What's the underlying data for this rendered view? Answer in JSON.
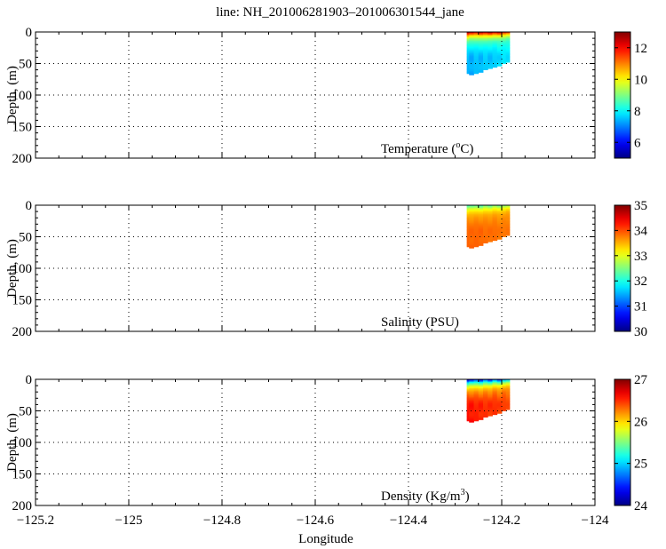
{
  "figure": {
    "title": "line: NH_201006281903–201006301544_jane",
    "xlabel": "Longitude"
  },
  "chart_data": [
    {
      "type": "heatmap",
      "title": "line: NH_201006281903–201006301544_jane",
      "panel_label": "Temperature (°C)",
      "label_main": "Temperature (",
      "label_sup": "o",
      "label_tail": "C)",
      "xlabel": "",
      "ylabel": "Depth, (m)",
      "xlim": [
        -125.2,
        -124.0
      ],
      "ylim": [
        200,
        0
      ],
      "y_inverted": true,
      "xticks": [
        -125.2,
        -125,
        -124.8,
        -124.6,
        -124.4,
        -124.2,
        -124
      ],
      "xtick_labels": [
        "−125.2",
        "−125",
        "−124.8",
        "−124.6",
        "−124.4",
        "−124.2",
        "−124"
      ],
      "yticks": [
        0,
        50,
        100,
        150,
        200
      ],
      "ytick_labels": [
        "0",
        "50",
        "100",
        "150",
        "200"
      ],
      "grid": true,
      "colorbar": {
        "min": 5,
        "max": 13,
        "ticks": [
          6,
          8,
          10,
          12
        ],
        "tick_labels": [
          "6",
          "8",
          "10",
          "12"
        ],
        "colormap": "jet"
      },
      "data_extent": {
        "lon_min": -124.275,
        "lon_max": -124.185
      },
      "profiles": [
        {
          "lon": -124.275,
          "max_depth": 66,
          "surface": 12.6,
          "bottom": 7.4
        },
        {
          "lon": -124.265,
          "max_depth": 67,
          "surface": 12.2,
          "bottom": 7.3
        },
        {
          "lon": -124.255,
          "max_depth": 65,
          "surface": 11.8,
          "bottom": 7.5
        },
        {
          "lon": -124.245,
          "max_depth": 63,
          "surface": 12.4,
          "bottom": 7.4
        },
        {
          "lon": -124.235,
          "max_depth": 60,
          "surface": 12.0,
          "bottom": 7.6
        },
        {
          "lon": -124.225,
          "max_depth": 58,
          "surface": 12.5,
          "bottom": 7.5
        },
        {
          "lon": -124.215,
          "max_depth": 56,
          "surface": 11.9,
          "bottom": 7.6
        },
        {
          "lon": -124.205,
          "max_depth": 53,
          "surface": 12.3,
          "bottom": 7.7
        },
        {
          "lon": -124.195,
          "max_depth": 50,
          "surface": 11.7,
          "bottom": 7.8
        },
        {
          "lon": -124.187,
          "max_depth": 48,
          "surface": 11.5,
          "bottom": 7.8
        }
      ]
    },
    {
      "type": "heatmap",
      "panel_label": "Salinity (PSU)",
      "label_main": "Salinity (PSU)",
      "label_sup": "",
      "label_tail": "",
      "xlabel": "",
      "ylabel": "Depth, (m)",
      "xlim": [
        -125.2,
        -124.0
      ],
      "ylim": [
        200,
        0
      ],
      "y_inverted": true,
      "xticks": [
        -125.2,
        -125,
        -124.8,
        -124.6,
        -124.4,
        -124.2,
        -124
      ],
      "yticks": [
        0,
        50,
        100,
        150,
        200
      ],
      "ytick_labels": [
        "0",
        "50",
        "100",
        "150",
        "200"
      ],
      "grid": true,
      "colorbar": {
        "min": 30,
        "max": 35,
        "ticks": [
          30,
          31,
          32,
          33,
          34,
          35
        ],
        "tick_labels": [
          "30",
          "31",
          "32",
          "33",
          "34",
          "35"
        ],
        "colormap": "jet"
      },
      "data_extent": {
        "lon_min": -124.275,
        "lon_max": -124.185
      },
      "profiles": [
        {
          "lon": -124.275,
          "max_depth": 66,
          "surface": 32.2,
          "bottom": 33.9
        },
        {
          "lon": -124.265,
          "max_depth": 67,
          "surface": 32.3,
          "bottom": 33.9
        },
        {
          "lon": -124.255,
          "max_depth": 65,
          "surface": 32.4,
          "bottom": 33.9
        },
        {
          "lon": -124.245,
          "max_depth": 63,
          "surface": 32.2,
          "bottom": 33.9
        },
        {
          "lon": -124.235,
          "max_depth": 60,
          "surface": 32.5,
          "bottom": 33.85
        },
        {
          "lon": -124.225,
          "max_depth": 58,
          "surface": 32.3,
          "bottom": 33.85
        },
        {
          "lon": -124.215,
          "max_depth": 56,
          "surface": 32.6,
          "bottom": 33.85
        },
        {
          "lon": -124.205,
          "max_depth": 53,
          "surface": 32.4,
          "bottom": 33.8
        },
        {
          "lon": -124.195,
          "max_depth": 50,
          "surface": 32.6,
          "bottom": 33.8
        },
        {
          "lon": -124.187,
          "max_depth": 48,
          "surface": 32.7,
          "bottom": 33.8
        }
      ]
    },
    {
      "type": "heatmap",
      "panel_label": "Density (Kg/m³)",
      "label_main": "Density (Kg/m",
      "label_sup": "3",
      "label_tail": ")",
      "xlabel": "Longitude",
      "ylabel": "Depth, (m)",
      "xlim": [
        -125.2,
        -124.0
      ],
      "ylim": [
        200,
        0
      ],
      "y_inverted": true,
      "xticks": [
        -125.2,
        -125,
        -124.8,
        -124.6,
        -124.4,
        -124.2,
        -124
      ],
      "xtick_labels": [
        "−125.2",
        "−125",
        "−124.8",
        "−124.6",
        "−124.4",
        "−124.2",
        "−124"
      ],
      "yticks": [
        0,
        50,
        100,
        150,
        200
      ],
      "ytick_labels": [
        "0",
        "50",
        "100",
        "150",
        "200"
      ],
      "grid": true,
      "colorbar": {
        "min": 24,
        "max": 27,
        "ticks": [
          24,
          25,
          26,
          27
        ],
        "tick_labels": [
          "24",
          "25",
          "26",
          "27"
        ],
        "colormap": "jet"
      },
      "data_extent": {
        "lon_min": -124.275,
        "lon_max": -124.185
      },
      "profiles": [
        {
          "lon": -124.275,
          "max_depth": 66,
          "surface": 24.2,
          "bottom": 26.6
        },
        {
          "lon": -124.265,
          "max_depth": 67,
          "surface": 24.4,
          "bottom": 26.6
        },
        {
          "lon": -124.255,
          "max_depth": 65,
          "surface": 24.6,
          "bottom": 26.55
        },
        {
          "lon": -124.245,
          "max_depth": 63,
          "surface": 24.3,
          "bottom": 26.55
        },
        {
          "lon": -124.235,
          "max_depth": 60,
          "surface": 24.7,
          "bottom": 26.5
        },
        {
          "lon": -124.225,
          "max_depth": 58,
          "surface": 24.4,
          "bottom": 26.5
        },
        {
          "lon": -124.215,
          "max_depth": 56,
          "surface": 24.8,
          "bottom": 26.5
        },
        {
          "lon": -124.205,
          "max_depth": 53,
          "surface": 24.5,
          "bottom": 26.45
        },
        {
          "lon": -124.195,
          "max_depth": 50,
          "surface": 24.9,
          "bottom": 26.45
        },
        {
          "lon": -124.187,
          "max_depth": 48,
          "surface": 25.0,
          "bottom": 26.4
        }
      ]
    }
  ]
}
